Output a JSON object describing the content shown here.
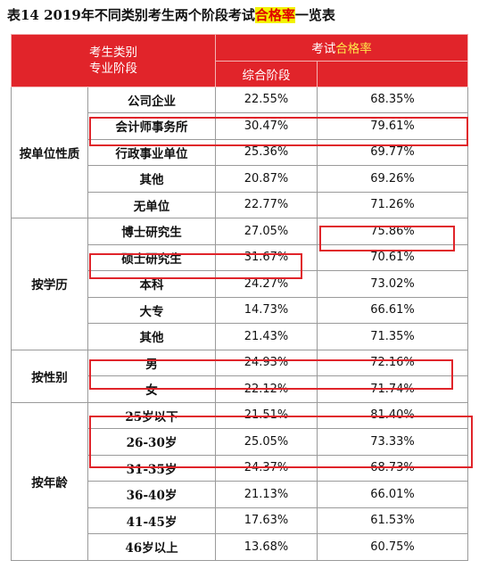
{
  "title": {
    "prefix": "表14  2019年不同类别考生两个阶段考试",
    "highlight": "合格率",
    "suffix": "一览表"
  },
  "header": {
    "category_label": "考生类别",
    "stage_label": "专业阶段",
    "exam_label_prefix": "考试",
    "exam_label_highlight": "合格率",
    "comprehensive_label": "综合阶段",
    "blank_label": ""
  },
  "colors": {
    "header_red": "#e1242a",
    "highlight_box": "#e0242a",
    "title_highlight_bg": "#f2f200",
    "title_highlight_text": "#e00000"
  },
  "groups": [
    {
      "category": "按单位性质",
      "rows": [
        {
          "name": "公司企业",
          "comprehensive": "22.55%",
          "professional": "68.35%"
        },
        {
          "name": "会计师事务所",
          "comprehensive": "30.47%",
          "professional": "79.61%"
        },
        {
          "name": "行政事业单位",
          "comprehensive": "25.36%",
          "professional": "69.77%"
        },
        {
          "name": "其他",
          "comprehensive": "20.87%",
          "professional": "69.26%"
        },
        {
          "name": "无单位",
          "comprehensive": "22.77%",
          "professional": "71.26%"
        }
      ]
    },
    {
      "category": "按学历",
      "rows": [
        {
          "name": "博士研究生",
          "comprehensive": "27.05%",
          "professional": "75.86%"
        },
        {
          "name": "硕士研究生",
          "comprehensive": "31.67%",
          "professional": "70.61%"
        },
        {
          "name": "本科",
          "comprehensive": "24.27%",
          "professional": "73.02%"
        },
        {
          "name": "大专",
          "comprehensive": "14.73%",
          "professional": "66.61%"
        },
        {
          "name": "其他",
          "comprehensive": "21.43%",
          "professional": "71.35%"
        }
      ]
    },
    {
      "category": "按性别",
      "rows": [
        {
          "name": "男",
          "comprehensive": "24.93%",
          "professional": "72.16%"
        },
        {
          "name": "女",
          "comprehensive": "22.12%",
          "professional": "71.74%"
        }
      ]
    },
    {
      "category": "按年龄",
      "rows": [
        {
          "name": "25岁以下",
          "comprehensive": "21.51%",
          "professional": "81.40%"
        },
        {
          "name": "26-30岁",
          "comprehensive": "25.05%",
          "professional": "73.33%"
        },
        {
          "name": "31-35岁",
          "comprehensive": "24.37%",
          "professional": "68.73%"
        },
        {
          "name": "36-40岁",
          "comprehensive": "21.13%",
          "professional": "66.01%"
        },
        {
          "name": "41-45岁",
          "comprehensive": "17.63%",
          "professional": "61.53%"
        },
        {
          "name": "46岁以上",
          "comprehensive": "13.68%",
          "professional": "60.75%"
        }
      ]
    }
  ]
}
